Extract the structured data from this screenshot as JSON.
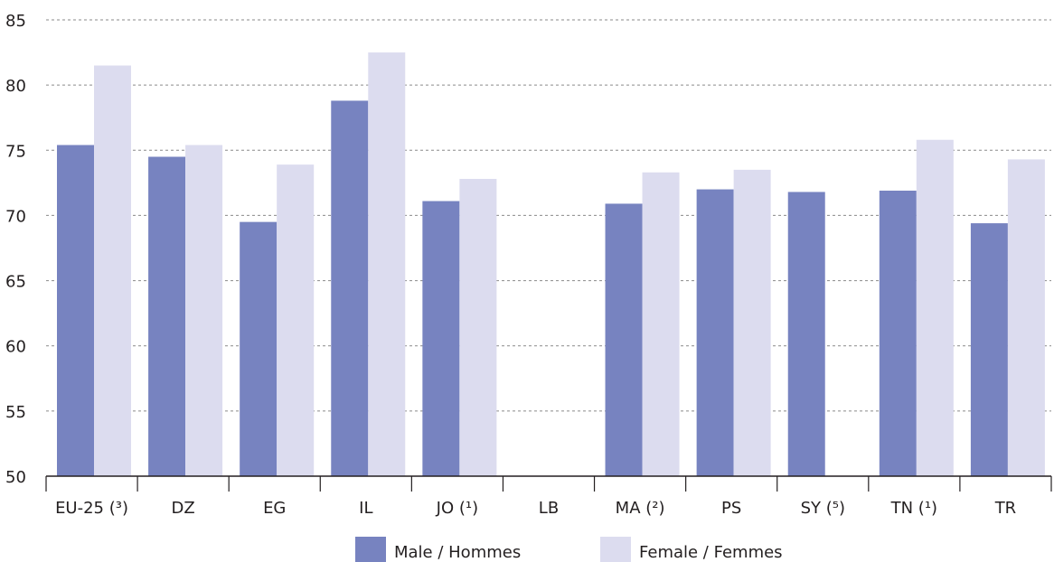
{
  "chart_data": {
    "type": "bar",
    "categories": [
      "EU-25 (³)",
      "DZ",
      "EG",
      "IL",
      "JO (¹)",
      "LB",
      "MA (²)",
      "PS",
      "SY (⁵)",
      "TN (¹)",
      "TR"
    ],
    "series": [
      {
        "name": "Male / Hommes",
        "color": "#7783c0",
        "values": [
          75.4,
          74.5,
          69.5,
          78.8,
          71.1,
          null,
          70.9,
          72.0,
          71.8,
          71.9,
          69.4
        ]
      },
      {
        "name": "Female / Femmes",
        "color": "#dcdcef",
        "values": [
          81.5,
          75.4,
          73.9,
          82.5,
          72.8,
          null,
          73.3,
          73.5,
          null,
          75.8,
          74.3
        ]
      }
    ],
    "ylim": [
      50,
      85
    ],
    "yticks": [
      50,
      55,
      60,
      65,
      70,
      75,
      80,
      85
    ],
    "grid": true,
    "grid_style": "dotted",
    "legend_position": "bottom-center",
    "title": "",
    "xlabel": "",
    "ylabel": ""
  }
}
